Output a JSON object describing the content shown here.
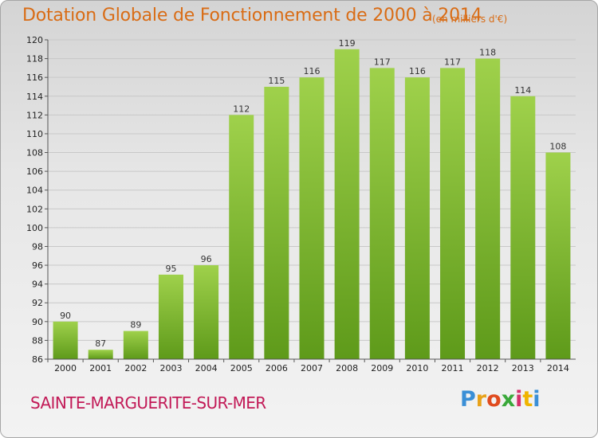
{
  "chart_data": {
    "type": "bar",
    "title": "Dotation Globale de Fonctionnement de 2000 à 2014",
    "subtitle": "(en milliers d'€)",
    "categories": [
      "2000",
      "2001",
      "2002",
      "2003",
      "2004",
      "2005",
      "2006",
      "2007",
      "2008",
      "2009",
      "2010",
      "2011",
      "2012",
      "2013",
      "2014"
    ],
    "values": [
      90,
      87,
      89,
      95,
      96,
      112,
      115,
      116,
      119,
      117,
      116,
      117,
      118,
      114,
      108
    ],
    "ylim": [
      86,
      120
    ],
    "ytick_step": 2,
    "grid": true,
    "bar_color_top": "#9fd14b",
    "bar_color_bottom": "#5e9a1a"
  },
  "footer": {
    "place_name": "SAINTE-MARGUERITE-SUR-MER",
    "logo_text": "Proxiti",
    "logo_colors": [
      "#3a8fd6",
      "#e8a21a",
      "#e04b1e",
      "#3aa83a",
      "#d62f6a",
      "#f0b400",
      "#3a8fd6"
    ]
  }
}
